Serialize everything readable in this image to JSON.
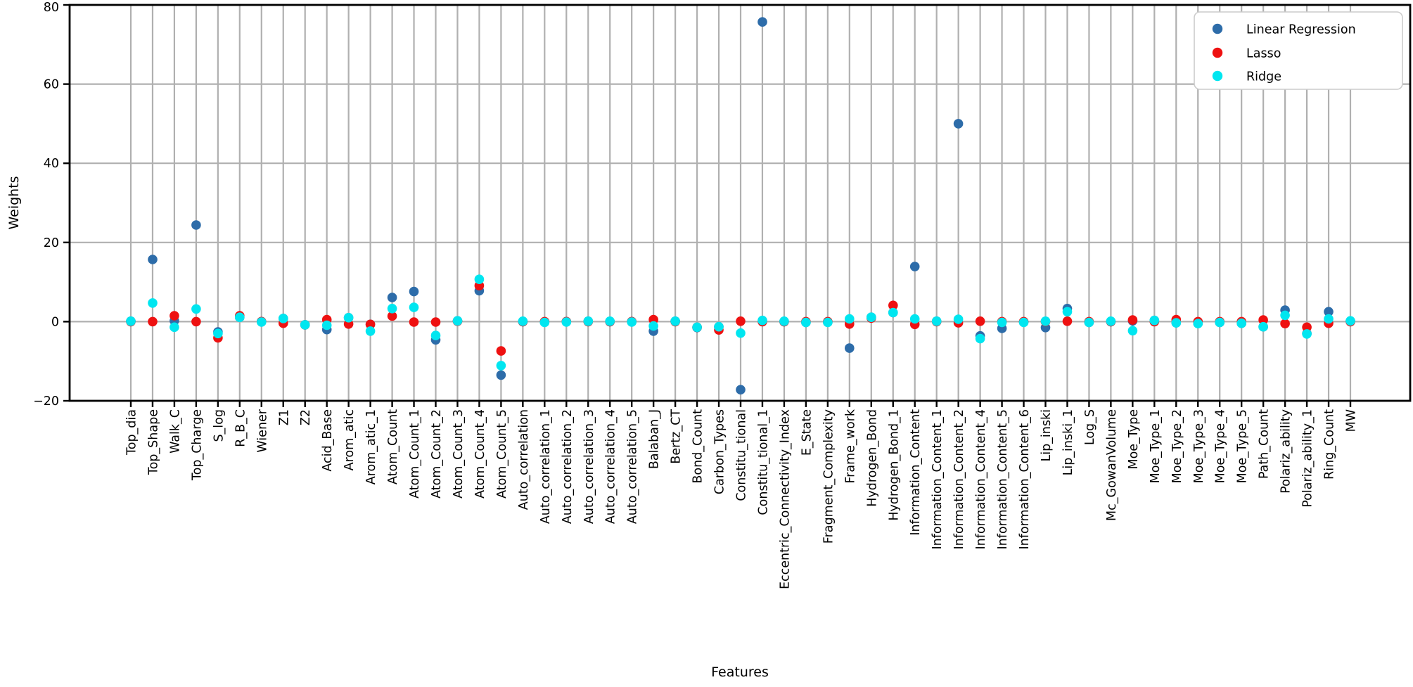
{
  "chart_data": {
    "type": "scatter",
    "title": "",
    "xlabel": "Features",
    "ylabel": "Weights",
    "ylim": [
      -20,
      80
    ],
    "yticks": [
      -20,
      0,
      20,
      40,
      60,
      80
    ],
    "grid": true,
    "legend_position": "upper right",
    "colors": {
      "linear_regression": "#2d6ca9",
      "lasso": "#ee1111",
      "ridge": "#00e6f0",
      "grid": "#b0b0b0",
      "spine": "#000000",
      "legend_border": "#cccccc"
    },
    "categories": [
      "Top_dia",
      "Top_Shape",
      "Walk_C",
      "Top_Charge",
      "S_log",
      "R_B_C",
      "Wiener",
      "Z1",
      "Z2",
      "Acid_Base",
      "Arom_atic",
      "Arom_atic_1",
      "Atom_Count",
      "Atom_Count_1",
      "Atom_Count_2",
      "Atom_Count_3",
      "Atom_Count_4",
      "Atom_Count_5",
      "Auto_correlation",
      "Auto_correlation_1",
      "Auto_correlation_2",
      "Auto_correlation_3",
      "Auto_correlation_4",
      "Auto_correlation_5",
      "Balaban_J",
      "Bertz_CT",
      "Bond_Count",
      "Carbon_Types",
      "Constitu_tional",
      "Constitu_tional_1",
      "Eccentric_Connectivity_Index",
      "E_State",
      "Fragment_Complexity",
      "Frame_work",
      "Hydrogen_Bond",
      "Hydrogen_Bond_1",
      "Information_Content",
      "Information_Content_1",
      "Information_Content_2",
      "Information_Content_4",
      "Information_Content_5",
      "Information_Content_6",
      "Lip_inski",
      "Lip_inski_1",
      "Log_S",
      "Mc_GowanVolume",
      "Moe_Type",
      "Moe_Type_1",
      "Moe_Type_2",
      "Moe_Type_3",
      "Moe_Type_4",
      "Moe_Type_5",
      "Path_Count",
      "Polariz_ability",
      "Polariz_ability_1",
      "Ring_Count",
      "MW"
    ],
    "series": [
      {
        "name": "Linear Regression",
        "color": "#2d6ca9",
        "values": [
          0.1,
          15.7,
          0.2,
          24.4,
          -2.6,
          1.1,
          0.0,
          0.8,
          -0.8,
          -2.0,
          1.0,
          -0.7,
          6.1,
          7.6,
          -4.6,
          0.2,
          7.8,
          -13.5,
          0.0,
          -0.1,
          0.0,
          0.1,
          0.0,
          0.0,
          -2.4,
          0.1,
          -1.5,
          -1.3,
          -17.2,
          75.7,
          0.0,
          -0.2,
          -0.1,
          -6.7,
          1.1,
          2.3,
          13.9,
          0.1,
          50.0,
          -3.6,
          -1.7,
          -0.1,
          -1.5,
          3.3,
          -0.2,
          0.0,
          0.2,
          0.3,
          -0.3,
          -0.4,
          -0.2,
          -0.4,
          -1.3,
          2.9,
          -3.0,
          2.5,
          0.1
        ]
      },
      {
        "name": "Lasso",
        "color": "#ee1111",
        "values": [
          0.0,
          0.0,
          1.5,
          0.0,
          -4.1,
          1.5,
          0.0,
          -0.4,
          -0.8,
          0.5,
          -0.6,
          -0.7,
          1.4,
          -0.1,
          -0.1,
          0.1,
          9.1,
          -7.4,
          0.0,
          0.0,
          0.0,
          0.0,
          0.0,
          0.0,
          0.5,
          0.0,
          -1.4,
          -2.1,
          0.1,
          0.0,
          0.0,
          0.0,
          0.0,
          -0.6,
          0.9,
          4.1,
          -0.7,
          0.0,
          -0.3,
          0.1,
          0.0,
          0.0,
          0.0,
          0.1,
          0.0,
          0.0,
          0.4,
          0.0,
          0.5,
          0.0,
          0.0,
          0.0,
          0.4,
          -0.5,
          -1.4,
          -0.4,
          0.0
        ]
      },
      {
        "name": "Ridge",
        "color": "#00e6f0",
        "values": [
          0.1,
          4.7,
          -1.4,
          3.2,
          -3.0,
          1.1,
          -0.1,
          0.8,
          -0.8,
          -0.9,
          1.0,
          -2.4,
          3.3,
          3.6,
          -3.5,
          0.2,
          10.7,
          -11.1,
          0.1,
          -0.2,
          -0.1,
          0.1,
          0.1,
          -0.1,
          -1.1,
          0.1,
          -1.4,
          -1.3,
          -2.9,
          0.3,
          0.1,
          -0.2,
          -0.2,
          0.7,
          1.1,
          2.3,
          0.7,
          0.1,
          0.6,
          -4.3,
          -0.2,
          -0.2,
          0.1,
          2.5,
          -0.2,
          0.1,
          -2.3,
          0.3,
          -0.3,
          -0.5,
          -0.2,
          -0.4,
          -1.3,
          1.6,
          -3.1,
          0.7,
          0.2
        ]
      }
    ],
    "legend": {
      "entries": [
        "Linear Regression",
        "Lasso",
        "Ridge"
      ]
    }
  }
}
